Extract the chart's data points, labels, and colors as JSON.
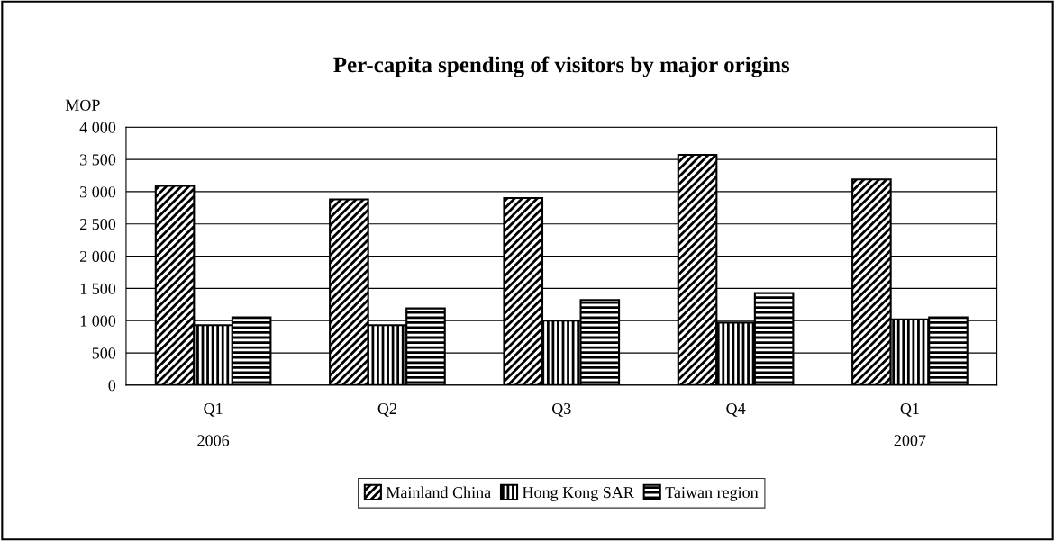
{
  "chart_data": {
    "type": "bar",
    "title": "Per-capita spending of visitors by major origins",
    "ylabel": "MOP",
    "categories": [
      "Q1",
      "Q2",
      "Q3",
      "Q4",
      "Q1"
    ],
    "series": [
      {
        "name": "Mainland China",
        "color": "#000000",
        "values": [
          3090,
          2880,
          2900,
          3570,
          3190
        ]
      },
      {
        "name": "Hong Kong SAR",
        "color": "#000000",
        "values": [
          930,
          930,
          1000,
          970,
          1020
        ]
      },
      {
        "name": "Taiwan region",
        "color": "#000000",
        "values": [
          1050,
          1190,
          1320,
          1430,
          1050
        ]
      }
    ],
    "annotations": [
      "2006",
      "2007"
    ],
    "ylim": [
      0,
      4000
    ],
    "yticks": [
      0,
      500,
      {
        "value": 1000,
        "label": "1 000"
      },
      {
        "value": 1500,
        "label": "1 500"
      },
      {
        "value": 2000,
        "label": "2 000"
      },
      {
        "value": 2500,
        "label": "2 500"
      },
      {
        "value": 3000,
        "label": "3 000"
      },
      {
        "value": 3500,
        "label": "3 500"
      },
      {
        "value": 4000,
        "label": "4 000"
      }
    ],
    "grid": "y",
    "legend": "bottom"
  }
}
